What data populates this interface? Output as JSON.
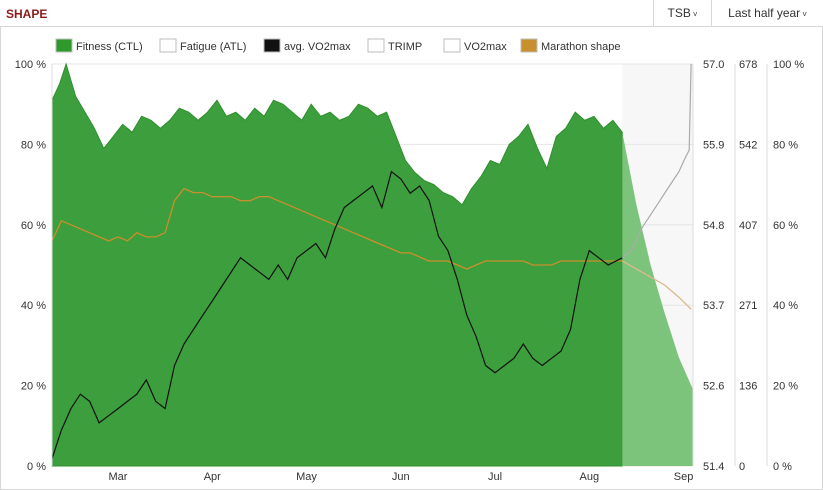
{
  "header": {
    "title": "SHAPE",
    "tsb_label": "TSB",
    "period_label": "Last half year"
  },
  "colors": {
    "fitness": "#3d9e3d",
    "fitness_forecast": "#7cc47c",
    "vo2max": "#111111",
    "marathon": "#c8902c",
    "vo2max_forecast": "#aaaaaa",
    "marathon_forecast": "#d9b98a"
  },
  "legend": [
    {
      "name": "Fitness (CTL)",
      "swatch": "#2e9a2e",
      "icon": "square-swatch"
    },
    {
      "name": "Fatigue (ATL)",
      "swatch": "#ffffff",
      "icon": "square-swatch"
    },
    {
      "name": "avg. VO2max",
      "swatch": "#111111",
      "icon": "square-swatch"
    },
    {
      "name": "TRIMP",
      "swatch": "#ffffff",
      "icon": "square-swatch"
    },
    {
      "name": "VO2max",
      "swatch": "#ffffff",
      "icon": "square-swatch"
    },
    {
      "name": "Marathon shape",
      "swatch": "#c8902c",
      "icon": "square-swatch"
    }
  ],
  "chart_data": {
    "type": "area",
    "x_labels": [
      "Mar",
      "Apr",
      "May",
      "Jun",
      "Jul",
      "Aug",
      "Sep"
    ],
    "x_label_pos": [
      0.5,
      1.5,
      2.5,
      3.5,
      4.5,
      5.5,
      6.5
    ],
    "x_range": [
      -0.2,
      6.6
    ],
    "forecast_start": 5.85,
    "axes": {
      "left": {
        "range": [
          0,
          100
        ],
        "ticks": [
          "0 %",
          "20 %",
          "40 %",
          "60 %",
          "80 %",
          "100 %"
        ]
      },
      "vo2max": {
        "range": [
          51.4,
          57.0
        ],
        "ticks": [
          "51.4",
          "52.6",
          "53.7",
          "54.8",
          "55.9",
          "57.0"
        ]
      },
      "trimp": {
        "range": [
          0,
          678
        ],
        "ticks": [
          "0",
          "136",
          "271",
          "407",
          "542",
          "678"
        ]
      },
      "right": {
        "range": [
          0,
          100
        ],
        "ticks": [
          "0 %",
          "20 %",
          "40 %",
          "60 %",
          "80 %",
          "100 %"
        ]
      }
    },
    "series": [
      {
        "name": "Fitness (CTL)",
        "axis": "left",
        "x": [
          -0.2,
          -0.12,
          -0.05,
          0.05,
          0.15,
          0.25,
          0.35,
          0.45,
          0.55,
          0.65,
          0.75,
          0.85,
          0.95,
          1.05,
          1.15,
          1.25,
          1.35,
          1.45,
          1.55,
          1.65,
          1.75,
          1.85,
          1.95,
          2.05,
          2.15,
          2.25,
          2.35,
          2.45,
          2.55,
          2.65,
          2.75,
          2.85,
          2.95,
          3.05,
          3.15,
          3.25,
          3.35,
          3.45,
          3.55,
          3.65,
          3.75,
          3.85,
          3.95,
          4.05,
          4.15,
          4.25,
          4.35,
          4.45,
          4.55,
          4.65,
          4.75,
          4.85,
          4.95,
          5.05,
          5.15,
          5.25,
          5.35,
          5.45,
          5.55,
          5.65,
          5.75,
          5.85
        ],
        "values": [
          91,
          95,
          100,
          92,
          88,
          84,
          79,
          82,
          85,
          83,
          87,
          86,
          84,
          86,
          89,
          88,
          86,
          88,
          91,
          87,
          88,
          86,
          89,
          87,
          91,
          90,
          88,
          86,
          90,
          87,
          88,
          86,
          87,
          90,
          89,
          87,
          88,
          82,
          76,
          73,
          71,
          70,
          68,
          67,
          65,
          69,
          72,
          76,
          75,
          80,
          82,
          85,
          79,
          74,
          82,
          84,
          88,
          86,
          87,
          84,
          86,
          83
        ]
      },
      {
        "name": "Fitness (CTL)",
        "axis": "left",
        "x": [
          5.85,
          6.0,
          6.15,
          6.3,
          6.45,
          6.6
        ],
        "values": [
          83,
          65,
          50,
          38,
          27,
          19
        ]
      },
      {
        "name": "avg. VO2max",
        "axis": "vo2max",
        "x": [
          -0.2,
          -0.1,
          0.0,
          0.1,
          0.2,
          0.3,
          0.4,
          0.5,
          0.6,
          0.7,
          0.8,
          0.9,
          1.0,
          1.1,
          1.2,
          1.3,
          1.4,
          1.5,
          1.6,
          1.7,
          1.8,
          1.9,
          2.0,
          2.1,
          2.2,
          2.3,
          2.4,
          2.5,
          2.6,
          2.7,
          2.8,
          2.9,
          3.0,
          3.1,
          3.2,
          3.3,
          3.4,
          3.5,
          3.6,
          3.7,
          3.8,
          3.9,
          4.0,
          4.1,
          4.2,
          4.3,
          4.4,
          4.5,
          4.6,
          4.7,
          4.8,
          4.9,
          5.0,
          5.1,
          5.2,
          5.3,
          5.4,
          5.5,
          5.6,
          5.7,
          5.85
        ],
        "values": [
          51.5,
          51.9,
          52.2,
          52.4,
          52.3,
          52.0,
          52.1,
          52.2,
          52.3,
          52.4,
          52.6,
          52.3,
          52.2,
          52.8,
          53.1,
          53.3,
          53.5,
          53.7,
          53.9,
          54.1,
          54.3,
          54.2,
          54.1,
          54.0,
          54.2,
          54.0,
          54.3,
          54.4,
          54.5,
          54.3,
          54.7,
          55.0,
          55.1,
          55.2,
          55.3,
          55.0,
          55.5,
          55.4,
          55.2,
          55.3,
          55.1,
          54.6,
          54.4,
          54.0,
          53.5,
          53.2,
          52.8,
          52.7,
          52.8,
          52.9,
          53.1,
          52.9,
          52.8,
          52.9,
          53.0,
          53.3,
          54.0,
          54.4,
          54.3,
          54.2,
          54.3
        ]
      },
      {
        "name": "avg. VO2max",
        "axis": "vo2max",
        "x": [
          5.85,
          5.95,
          6.05,
          6.15,
          6.25,
          6.35,
          6.45,
          6.52,
          6.56,
          6.58
        ],
        "values": [
          54.3,
          54.4,
          54.7,
          54.9,
          55.1,
          55.3,
          55.5,
          55.7,
          55.8,
          57.0
        ]
      },
      {
        "name": "Marathon shape",
        "axis": "left",
        "x": [
          -0.2,
          -0.1,
          0.0,
          0.1,
          0.2,
          0.3,
          0.4,
          0.5,
          0.6,
          0.7,
          0.8,
          0.9,
          1.0,
          1.1,
          1.2,
          1.3,
          1.4,
          1.5,
          1.6,
          1.7,
          1.8,
          1.9,
          2.0,
          2.1,
          2.2,
          2.3,
          2.4,
          2.5,
          2.6,
          2.7,
          2.8,
          2.9,
          3.0,
          3.1,
          3.2,
          3.3,
          3.4,
          3.5,
          3.6,
          3.7,
          3.8,
          3.9,
          4.0,
          4.1,
          4.2,
          4.3,
          4.4,
          4.5,
          4.6,
          4.7,
          4.8,
          4.9,
          5.0,
          5.1,
          5.2,
          5.3,
          5.4,
          5.5,
          5.6,
          5.7,
          5.85
        ],
        "values": [
          56,
          61,
          60,
          59,
          58,
          57,
          56,
          57,
          56,
          58,
          57,
          57,
          58,
          66,
          69,
          68,
          68,
          67,
          67,
          67,
          66,
          66,
          67,
          67,
          66,
          65,
          64,
          63,
          62,
          61,
          60,
          59,
          58,
          57,
          56,
          55,
          54,
          53,
          53,
          52,
          51,
          51,
          51,
          50,
          49,
          50,
          51,
          51,
          51,
          51,
          51,
          50,
          50,
          50,
          51,
          51,
          51,
          51,
          51,
          51,
          51
        ]
      },
      {
        "name": "Marathon shape",
        "axis": "left",
        "x": [
          5.85,
          6.0,
          6.15,
          6.3,
          6.45,
          6.58
        ],
        "values": [
          51,
          49,
          47,
          45,
          42,
          39
        ]
      }
    ]
  }
}
